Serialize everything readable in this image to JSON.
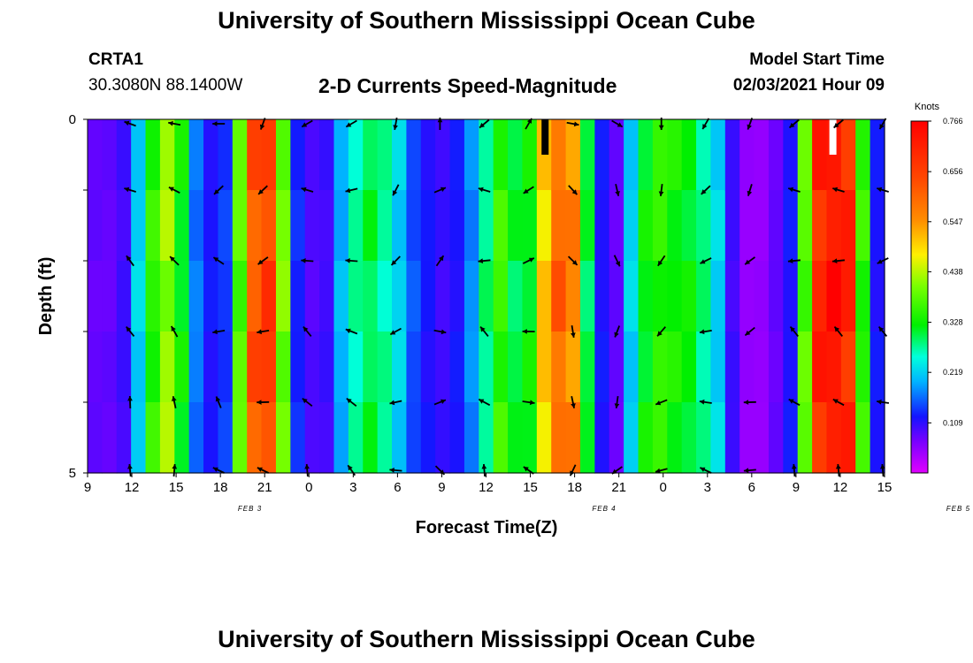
{
  "header": {
    "title": "University of Southern Mississippi Ocean Cube",
    "station": "CRTA1",
    "location": "30.3080N 88.1400W",
    "subtitle": "2-D Currents Speed-Magnitude",
    "model_label": "Model Start Time",
    "model_value": "02/03/2021 Hour 09"
  },
  "footer": {
    "title": "University of Southern Mississippi Ocean Cube"
  },
  "chart_data": {
    "type": "heatmap",
    "title": "2-D Currents Speed-Magnitude",
    "xlabel": "Forecast Time(Z)",
    "ylabel": "Depth (ft)",
    "x_ticks": [
      "9",
      "12",
      "15",
      "18",
      "21",
      "0",
      "3",
      "6",
      "9",
      "12",
      "15",
      "18",
      "21",
      "0",
      "3",
      "6",
      "9",
      "12",
      "15"
    ],
    "date_labels": [
      {
        "label": "FEB 3",
        "x_hour": 11
      },
      {
        "label": "FEB 4",
        "x_hour": 35
      },
      {
        "label": "FEB 5",
        "x_hour": 59
      }
    ],
    "xlim": [
      0,
      54
    ],
    "y_ticks": [
      "0",
      "5"
    ],
    "ylim": [
      0,
      5
    ],
    "depth_layers": [
      0,
      1,
      2,
      3,
      4,
      5
    ],
    "colorbar": {
      "unit": "Knots",
      "ticks": [
        "0.766",
        "0.656",
        "0.547",
        "0.438",
        "0.328",
        "0.219",
        "0.109"
      ],
      "min": 0.0,
      "max": 0.766
    },
    "speed_profile_by_hour": [
      0.08,
      0.08,
      0.1,
      0.22,
      0.35,
      0.42,
      0.32,
      0.17,
      0.12,
      0.14,
      0.38,
      0.62,
      0.66,
      0.4,
      0.13,
      0.09,
      0.1,
      0.2,
      0.27,
      0.3,
      0.27,
      0.22,
      0.15,
      0.12,
      0.1,
      0.12,
      0.18,
      0.28,
      0.36,
      0.3,
      0.32,
      0.5,
      0.6,
      0.56,
      0.3,
      0.12,
      0.08,
      0.22,
      0.32,
      0.35,
      0.33,
      0.32,
      0.28,
      0.22,
      0.1,
      0.05,
      0.05,
      0.08,
      0.12,
      0.38,
      0.7,
      0.74,
      0.7,
      0.35,
      0.12
    ],
    "arrows_by_layer": [
      {
        "hours": [
          3,
          6,
          9,
          12,
          15,
          18,
          21,
          24,
          27,
          30,
          33,
          36,
          39,
          42,
          45,
          48,
          51,
          54
        ],
        "deg": [
          200,
          190,
          180,
          110,
          150,
          150,
          100,
          270,
          140,
          300,
          10,
          30,
          90,
          120,
          110,
          140,
          140,
          120
        ]
      },
      {
        "hours": [
          3,
          6,
          9,
          12,
          15,
          18,
          21,
          24,
          27,
          30,
          33,
          36,
          39,
          42,
          45,
          48,
          51,
          54
        ],
        "deg": [
          180,
          190,
          120,
          120,
          180,
          150,
          100,
          320,
          180,
          130,
          30,
          60,
          80,
          120,
          90,
          180,
          180,
          180
        ]
      }
    ],
    "missing_cells": [
      {
        "hour": 31,
        "depth_top": 0,
        "depth_bottom": 0.5,
        "color": "#000000"
      },
      {
        "hour": 50.5,
        "depth_top": 0,
        "depth_bottom": 0.5,
        "color": "#ffffff"
      }
    ]
  }
}
